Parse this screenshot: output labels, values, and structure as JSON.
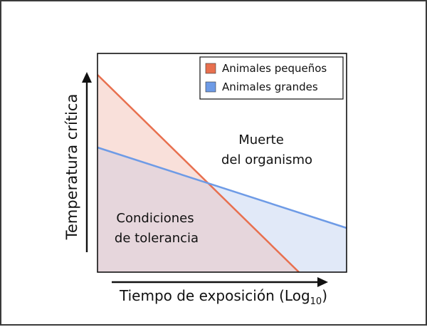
{
  "diagram": {
    "legend": [
      {
        "label": "Animales pequeños",
        "color": "#e8704f"
      },
      {
        "label": "Animales grandes",
        "color": "#6e9be6"
      }
    ],
    "regions": {
      "upper_line1": "Muerte",
      "upper_line2": "del organismo",
      "lower_line1": "Condiciones",
      "lower_line2": "de tolerancia"
    },
    "axes": {
      "y_label": "Temperatura crítica",
      "x_label_main": "Tiempo de exposición (Log",
      "x_label_sub": "10",
      "x_label_close": ")"
    },
    "colors": {
      "small_line": "#e8704f",
      "small_fill": "#f9e0da",
      "large_line": "#6e9be6",
      "large_fill": "#e1e9f8",
      "overlap_fill": "#e6d6dc"
    }
  }
}
